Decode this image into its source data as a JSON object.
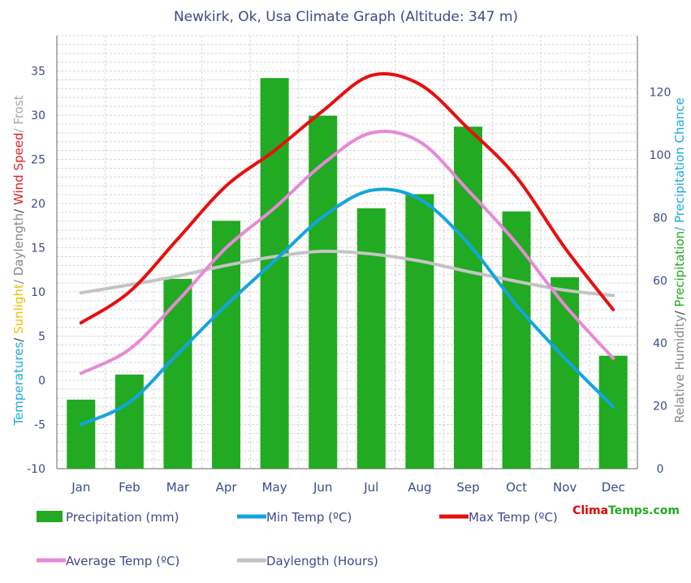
{
  "chart_data": {
    "type": "bar",
    "title": "Newkirk, Ok, Usa Climate Graph (Altitude: 347 m)",
    "categories": [
      "Jan",
      "Feb",
      "Mar",
      "Apr",
      "May",
      "Jun",
      "Jul",
      "Aug",
      "Sep",
      "Oct",
      "Nov",
      "Dec"
    ],
    "y_left_ticks": [
      -10,
      -5,
      0,
      5,
      10,
      15,
      20,
      25,
      30,
      35
    ],
    "y_right_ticks": [
      0,
      20,
      40,
      60,
      80,
      100,
      120
    ],
    "ylim_left": [
      -10,
      39
    ],
    "ylim_right": [
      0,
      138
    ],
    "grid": true,
    "ylabel_left_parts": [
      {
        "text": "Temperatures",
        "color": "#1eaadc"
      },
      {
        "text": "/ ",
        "color": "#444444"
      },
      {
        "text": "Sunlight",
        "color": "#f0c000"
      },
      {
        "text": "/ Daylength",
        "color": "#888888"
      },
      {
        "text": "/ ",
        "color": "#444444"
      },
      {
        "text": "Wind Speed",
        "color": "#e02020"
      },
      {
        "text": "/ Frost",
        "color": "#aaaaaa"
      }
    ],
    "ylabel_right_parts": [
      {
        "text": "Relative Humidity",
        "color": "#888888"
      },
      {
        "text": "/ ",
        "color": "#444444"
      },
      {
        "text": "Precipitation",
        "color": "#22aa22"
      },
      {
        "text": "/ Precipitation Chance",
        "color": "#1eaadc"
      }
    ],
    "series": [
      {
        "name": "Precipitation (mm)",
        "axis": "right",
        "kind": "bar",
        "color": "#22aa22",
        "values": [
          22,
          30,
          60.5,
          79,
          124.5,
          112.5,
          83,
          87.5,
          109,
          82,
          61,
          36
        ]
      },
      {
        "name": "Min Temp (ºC)",
        "axis": "left",
        "kind": "line",
        "color": "#12a5e0",
        "values": [
          -5,
          -2.5,
          3,
          8.5,
          13.5,
          18.5,
          21.5,
          20.5,
          15.5,
          8.5,
          2.5,
          -3
        ]
      },
      {
        "name": "Max Temp (ºC)",
        "axis": "left",
        "kind": "line",
        "color": "#e80f0f",
        "values": [
          6.5,
          10,
          16,
          22,
          26,
          30.5,
          34.5,
          33.5,
          28.5,
          23,
          15,
          8
        ]
      },
      {
        "name": "Average Temp (ºC)",
        "axis": "left",
        "kind": "line",
        "color": "#e68ad6",
        "values": [
          0.8,
          3.5,
          9,
          15,
          19.5,
          24.5,
          28,
          27,
          21.5,
          15.5,
          8.5,
          2.5
        ]
      },
      {
        "name": "Daylength (Hours)",
        "axis": "left",
        "kind": "line",
        "color": "#c4c4c4",
        "values": [
          9.9,
          10.8,
          11.8,
          13,
          14,
          14.6,
          14.3,
          13.5,
          12.3,
          11.2,
          10.2,
          9.6
        ]
      }
    ]
  },
  "brand": {
    "part1": "Clima",
    "part2": "Temps",
    "part3": ".com",
    "color1": "#e00000",
    "color2": "#22aa22"
  }
}
